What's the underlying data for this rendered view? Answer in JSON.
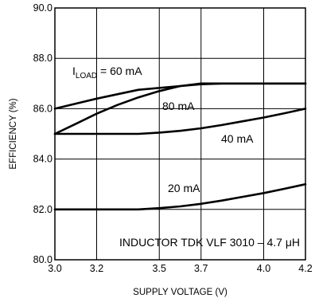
{
  "chart_data": {
    "type": "line",
    "xlabel": "SUPPLY VOLTAGE (V)",
    "ylabel": "EFFICIENCY (%)",
    "xlim": [
      3.0,
      4.2
    ],
    "ylim": [
      80.0,
      90.0
    ],
    "x_ticks": [
      3.0,
      3.2,
      3.5,
      3.7,
      4.0,
      4.2
    ],
    "x_tick_labels": [
      "3.0",
      "3.2",
      "3.5",
      "3.7",
      "4.0",
      "4.2"
    ],
    "y_ticks": [
      80.0,
      82.0,
      84.0,
      86.0,
      88.0,
      90.0
    ],
    "y_tick_labels": [
      "80.0",
      "82.0",
      "84.0",
      "86.0",
      "88.0",
      "90.0"
    ],
    "grid": true,
    "series": [
      {
        "name": "I_LOAD = 60 mA",
        "x": [
          3.0,
          3.2,
          3.4,
          3.6,
          3.7,
          3.8,
          4.0,
          4.2
        ],
        "y": [
          86.0,
          86.4,
          86.75,
          86.9,
          87.0,
          87.0,
          87.0,
          87.0
        ]
      },
      {
        "name": "80 mA",
        "x": [
          3.0,
          3.1,
          3.2,
          3.3,
          3.4,
          3.5,
          3.6,
          3.7,
          3.8,
          4.0,
          4.2
        ],
        "y": [
          85.0,
          85.4,
          85.8,
          86.15,
          86.45,
          86.7,
          86.9,
          86.97,
          87.0,
          87.0,
          87.0
        ]
      },
      {
        "name": "40 mA",
        "x": [
          3.0,
          3.2,
          3.4,
          3.5,
          3.6,
          3.7,
          3.8,
          3.9,
          4.0,
          4.1,
          4.2
        ],
        "y": [
          85.0,
          85.0,
          85.0,
          85.05,
          85.12,
          85.22,
          85.35,
          85.5,
          85.65,
          85.82,
          86.0
        ]
      },
      {
        "name": "20 mA",
        "x": [
          3.0,
          3.2,
          3.4,
          3.5,
          3.6,
          3.7,
          3.8,
          3.9,
          4.0,
          4.1,
          4.2
        ],
        "y": [
          82.0,
          82.0,
          82.0,
          82.05,
          82.12,
          82.22,
          82.35,
          82.5,
          82.65,
          82.82,
          83.0
        ]
      }
    ],
    "annotations": {
      "iload_prefix": "I",
      "iload_sub": "LOAD",
      "iload_value": " = 60 mA",
      "label_80": "80 mA",
      "label_40": "40 mA",
      "label_20": "20 mA",
      "inductor": "INDUCTOR TDK VLF 3010 – 4.7 μH"
    }
  }
}
